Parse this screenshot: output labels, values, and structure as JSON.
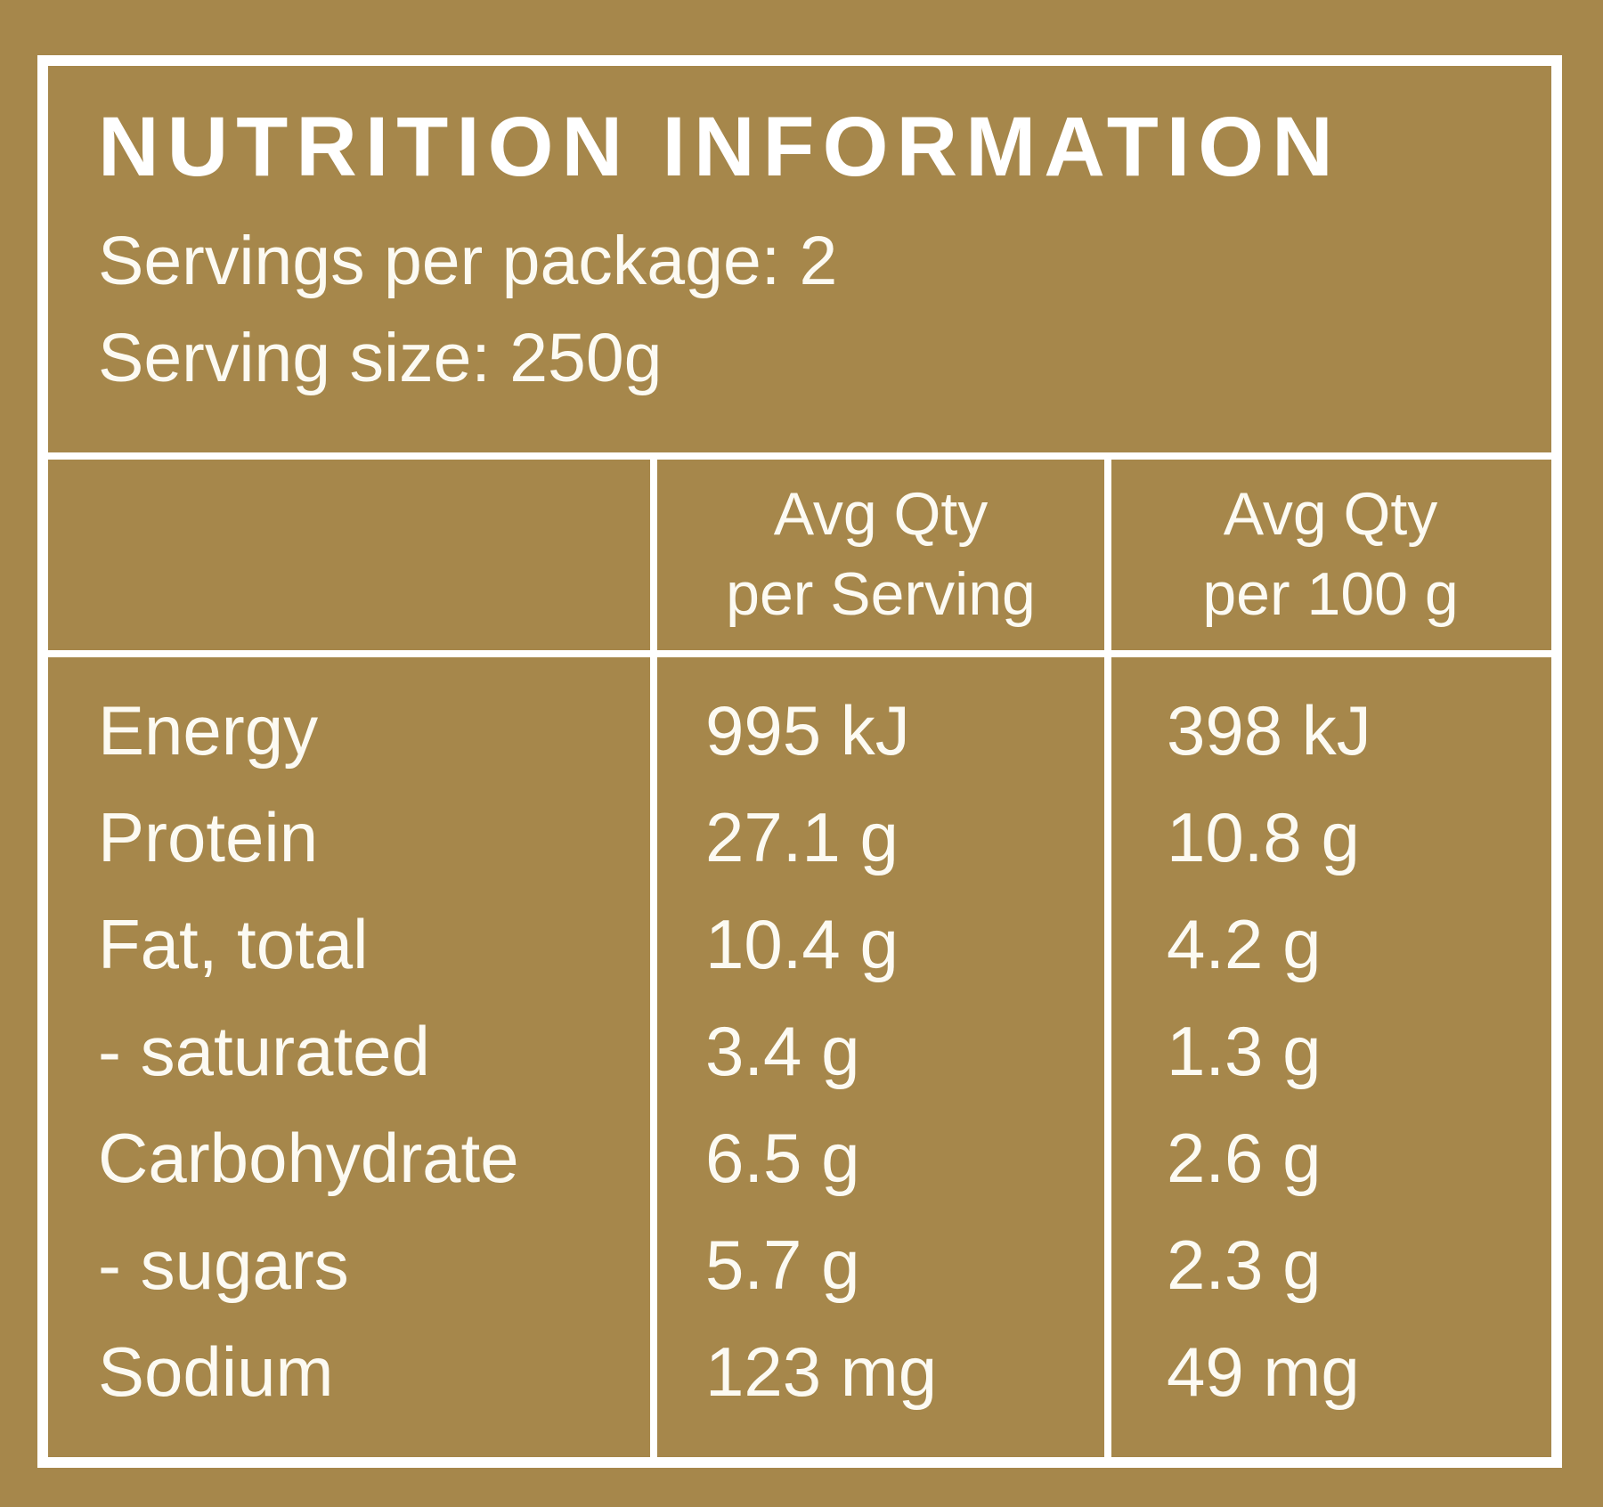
{
  "label": {
    "title": "NUTRITION INFORMATION",
    "servings_per_package": "Servings per package: 2",
    "serving_size": "Serving size: 250g",
    "columns": {
      "per_serving_line1": "Avg Qty",
      "per_serving_line2": "per Serving",
      "per_100g_line1": "Avg Qty",
      "per_100g_line2": "per 100 g"
    },
    "rows": [
      {
        "nutrient": "Energy",
        "per_serving": "995 kJ",
        "per_100g": "398 kJ"
      },
      {
        "nutrient": "Protein",
        "per_serving": "27.1 g",
        "per_100g": "10.8 g"
      },
      {
        "nutrient": "Fat, total",
        "per_serving": "10.4 g",
        "per_100g": "4.2 g"
      },
      {
        "nutrient": "- saturated",
        "per_serving": "3.4 g",
        "per_100g": "1.3 g"
      },
      {
        "nutrient": "Carbohydrate",
        "per_serving": "6.5 g",
        "per_100g": "2.6 g"
      },
      {
        "nutrient": "- sugars",
        "per_serving": "5.7 g",
        "per_100g": "2.3 g"
      },
      {
        "nutrient": "Sodium",
        "per_serving": "123 mg",
        "per_100g": "49 mg"
      }
    ],
    "colors": {
      "background": "#A6874B",
      "border": "#FFFFFF",
      "text": "#FCFAF2"
    }
  }
}
